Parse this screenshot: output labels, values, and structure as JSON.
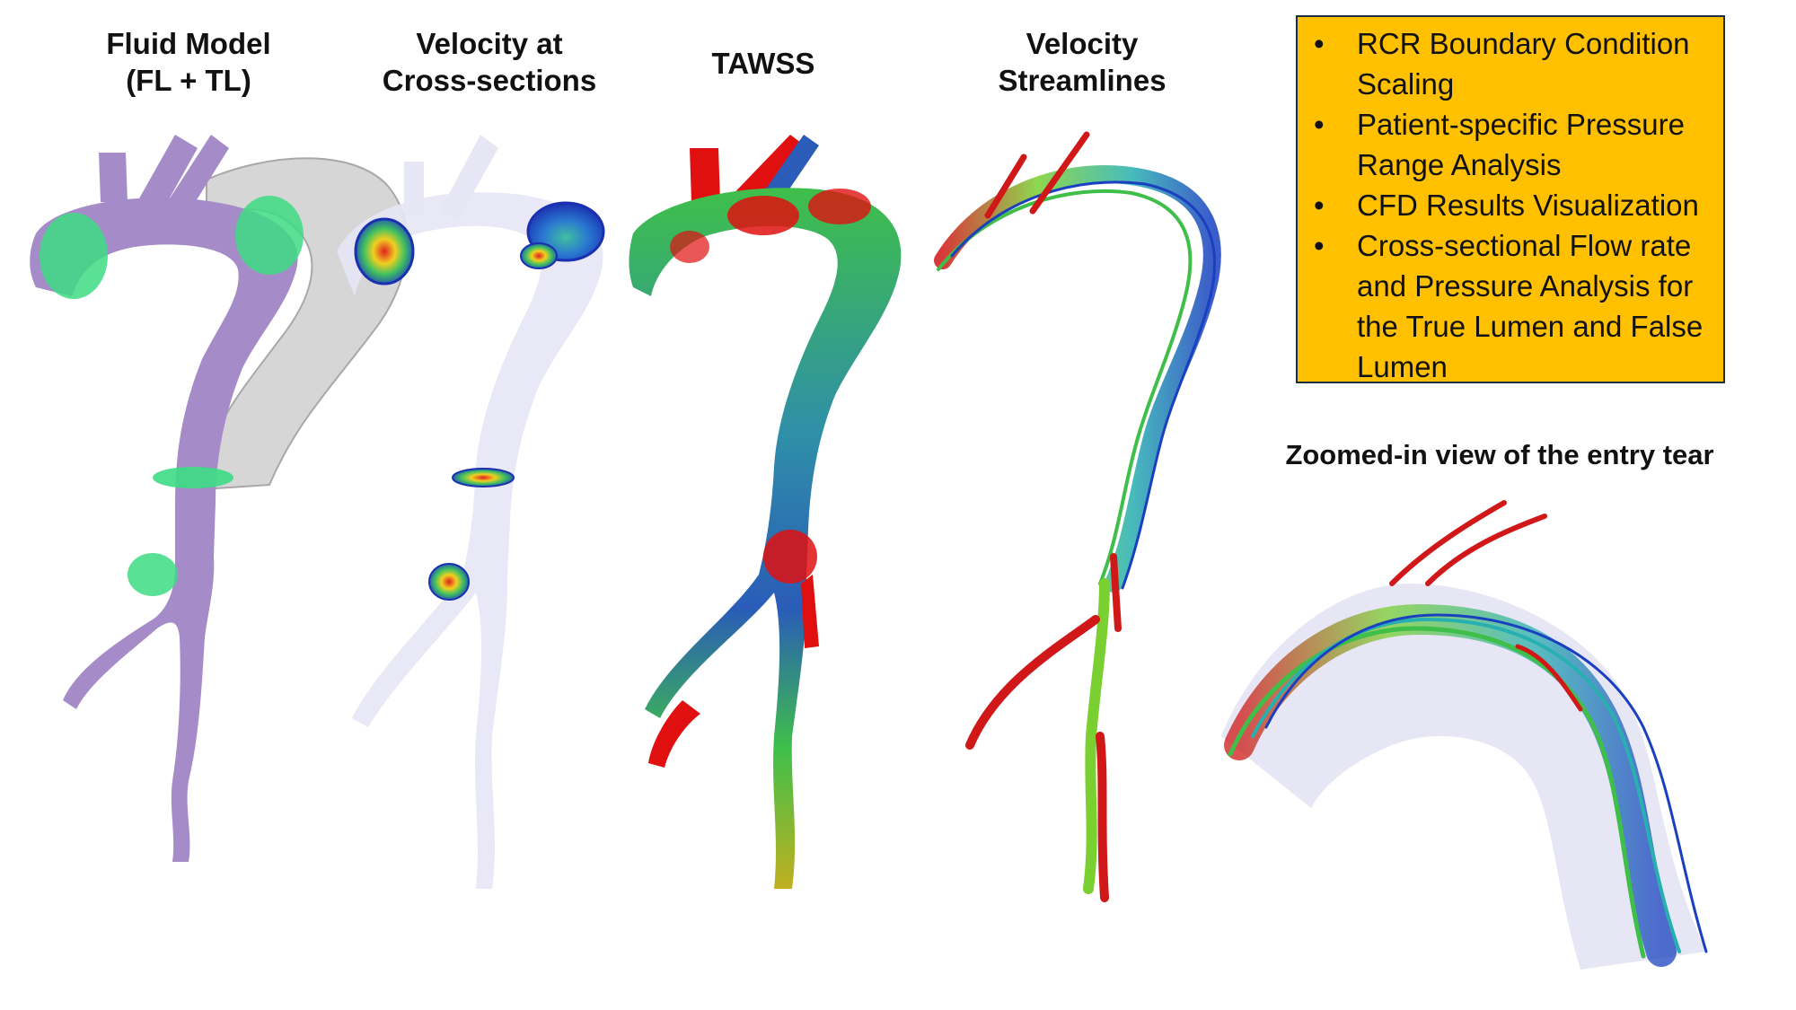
{
  "panels": [
    {
      "title_line1": "Fluid Model",
      "title_line2": "(FL + TL)"
    },
    {
      "title_line1": "Velocity at",
      "title_line2": "Cross-sections"
    },
    {
      "title_line1": "TAWSS",
      "title_line2": ""
    },
    {
      "title_line1": "Velocity",
      "title_line2": "Streamlines"
    }
  ],
  "infobox": {
    "background": "#ffc000",
    "bullet_glyph": "•",
    "items": [
      "RCR Boundary Condition Scaling",
      "Patient-specific Pressure Range Analysis",
      "CFD Results Visualization",
      "Cross-sectional Flow rate and Pressure Analysis for the True Lumen and False Lumen"
    ]
  },
  "zoom": {
    "title": "Zoomed-in view of the entry tear"
  },
  "colors": {
    "fluid_model": "#a58cc8",
    "false_lumen": "#c8c8c8",
    "cross_section_plane": "#3ddc84",
    "ghost_vessel": "#e6e6f5",
    "tawss_low": "#2a5cb8",
    "tawss_mid": "#3fbf4a",
    "tawss_high": "#e01010"
  }
}
